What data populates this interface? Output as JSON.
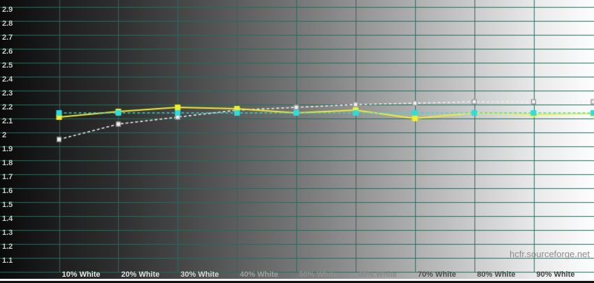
{
  "watermark": {
    "text": "hcfr.sourceforge.net"
  },
  "chart_data": {
    "type": "line",
    "title": "",
    "xlabel": "",
    "ylabel": "",
    "ylim": [
      1.0,
      2.9
    ],
    "grid": true,
    "grid_color": "#2e685c",
    "y_ticks": [
      "2.9",
      "2.8",
      "2.7",
      "2.6",
      "2.5",
      "2.4",
      "2.3",
      "2.2",
      "2.1",
      "2",
      "1.9",
      "1.8",
      "1.7",
      "1.6",
      "1.5",
      "1.4",
      "1.3",
      "1.2",
      "1.1"
    ],
    "y_tick_values": [
      2.9,
      2.8,
      2.7,
      2.6,
      2.5,
      2.4,
      2.3,
      2.2,
      2.1,
      2.0,
      1.9,
      1.8,
      1.7,
      1.6,
      1.5,
      1.4,
      1.3,
      1.2,
      1.1
    ],
    "y_gridline_values": [
      2.9,
      2.8,
      2.7,
      2.6,
      2.5,
      2.4,
      2.3,
      2.2,
      2.1,
      2.0,
      1.9,
      1.8,
      1.7,
      1.6,
      1.5,
      1.4,
      1.3,
      1.2,
      1.1,
      1.0
    ],
    "categories": [
      "10% White",
      "20% White",
      "30% White",
      "40% White",
      "50% White",
      "60% White",
      "70% White",
      "80% White",
      "90% White"
    ],
    "x_label_colors": [
      "#e8e8e8",
      "#e0e0e0",
      "#d8d8d8",
      "#a0a0a0",
      "#8f8f8f",
      "#8a8a8a",
      "#4f4f4f",
      "#4a4a4a",
      "#464646"
    ],
    "series": [
      {
        "name": "white-dashed-gamma-trend",
        "color": "#f0f0f0",
        "dash": true,
        "marker": "square",
        "marker_size": 7,
        "marker_border": "#7d7d7d",
        "values": [
          1.95,
          2.06,
          2.11,
          2.16,
          2.18,
          2.2,
          2.21,
          2.22,
          2.22
        ],
        "edge_value": 2.22
      },
      {
        "name": "yellow-measured-gamma",
        "color": "#f4ee28",
        "dash": false,
        "marker": "square",
        "marker_size": 8,
        "marker_border": null,
        "values": [
          2.11,
          2.15,
          2.18,
          2.17,
          2.14,
          2.16,
          2.1,
          2.14,
          2.13
        ],
        "edge_value": 2.135
      },
      {
        "name": "cyan-dashed-average-gamma",
        "color": "#28dede",
        "dash": true,
        "marker": "square",
        "marker_size": 8,
        "marker_border": null,
        "values": [
          2.14,
          2.14,
          2.14,
          2.14,
          2.14,
          2.14,
          2.14,
          2.14,
          2.14
        ],
        "edge_value": 2.14
      }
    ]
  }
}
